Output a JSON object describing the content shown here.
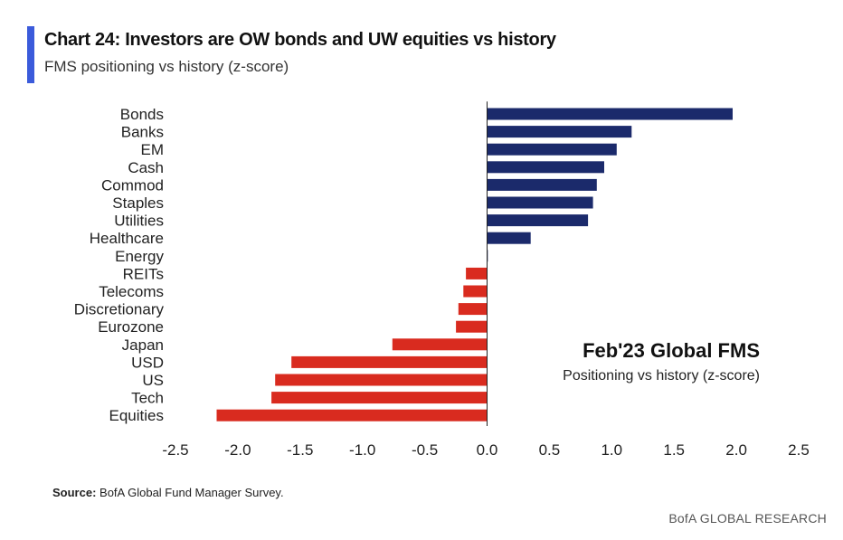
{
  "header": {
    "title": "Chart 24: Investors are OW bonds and UW equities vs history",
    "subtitle": "FMS positioning vs history (z-score)"
  },
  "annotation": {
    "title": "Feb'23 Global FMS",
    "subtitle": "Positioning vs history (z-score)"
  },
  "footer": {
    "source_label": "Source:",
    "source_text": "BofA Global Fund Manager Survey.",
    "brand": "BofA GLOBAL RESEARCH"
  },
  "colors": {
    "accent": "#3b5bdb",
    "positive": "#1b2a6b",
    "negative": "#d92b1f"
  },
  "chart_data": {
    "type": "bar",
    "orientation": "horizontal",
    "categories": [
      "Bonds",
      "Banks",
      "EM",
      "Cash",
      "Commod",
      "Staples",
      "Utilities",
      "Healthcare",
      "Energy",
      "REITs",
      "Telecoms",
      "Discretionary",
      "Eurozone",
      "Japan",
      "USD",
      "US",
      "Tech",
      "Equities"
    ],
    "values": [
      1.97,
      1.16,
      1.04,
      0.94,
      0.88,
      0.85,
      0.81,
      0.35,
      0.0,
      -0.17,
      -0.19,
      -0.23,
      -0.25,
      -0.76,
      -1.57,
      -1.7,
      -1.73,
      -2.17
    ],
    "xlim": [
      -2.5,
      2.5
    ],
    "xticks": [
      "-2.5",
      "-2.0",
      "-1.5",
      "-1.0",
      "-0.5",
      "0.0",
      "0.5",
      "1.0",
      "1.5",
      "2.0",
      "2.5"
    ],
    "xlabel": "",
    "ylabel": "",
    "grid": false,
    "legend": "none"
  }
}
